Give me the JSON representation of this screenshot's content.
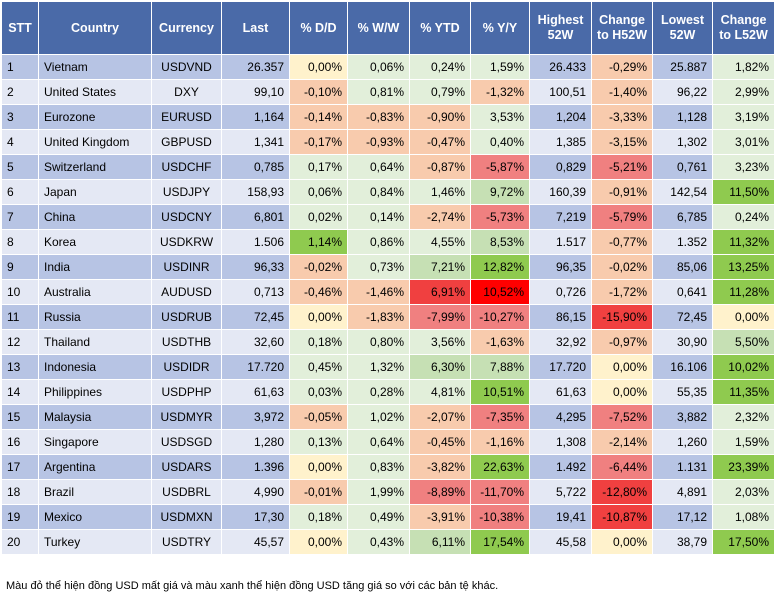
{
  "table": {
    "headers": [
      "STT",
      "Country",
      "Currency",
      "Last",
      "% D/D",
      "% W/W",
      "% YTD",
      "% Y/Y",
      "Highest 52W",
      "Change to H52W",
      "Lowest 52W",
      "Change to L52W"
    ],
    "rows": [
      [
        "1",
        "Vietnam",
        "USDVND",
        "26.357",
        "0,00%",
        "0,06%",
        "0,24%",
        "1,59%",
        "26.433",
        "-0,29%",
        "25.887",
        "1,82%"
      ],
      [
        "2",
        "United States",
        "DXY",
        "99,10",
        "-0,10%",
        "0,81%",
        "0,79%",
        "-1,32%",
        "100,51",
        "-1,40%",
        "96,22",
        "2,99%"
      ],
      [
        "3",
        "Eurozone",
        "EURUSD",
        "1,164",
        "-0,14%",
        "-0,83%",
        "-0,90%",
        "3,53%",
        "1,204",
        "-3,33%",
        "1,128",
        "3,19%"
      ],
      [
        "4",
        "United Kingdom",
        "GBPUSD",
        "1,341",
        "-0,17%",
        "-0,93%",
        "-0,47%",
        "0,40%",
        "1,385",
        "-3,15%",
        "1,302",
        "3,01%"
      ],
      [
        "5",
        "Switzerland",
        "USDCHF",
        "0,785",
        "0,17%",
        "0,64%",
        "-0,87%",
        "-5,87%",
        "0,829",
        "-5,21%",
        "0,761",
        "3,23%"
      ],
      [
        "6",
        "Japan",
        "USDJPY",
        "158,93",
        "0,06%",
        "0,84%",
        "1,46%",
        "9,72%",
        "160,39",
        "-0,91%",
        "142,54",
        "11,50%"
      ],
      [
        "7",
        "China",
        "USDCNY",
        "6,801",
        "0,02%",
        "0,14%",
        "-2,74%",
        "-5,73%",
        "7,219",
        "-5,79%",
        "6,785",
        "0,24%"
      ],
      [
        "8",
        "Korea",
        "USDKRW",
        "1.506",
        "1,14%",
        "0,86%",
        "4,55%",
        "8,53%",
        "1.517",
        "-0,77%",
        "1.352",
        "11,32%"
      ],
      [
        "9",
        "India",
        "USDINR",
        "96,33",
        "-0,02%",
        "0,73%",
        "7,21%",
        "12,82%",
        "96,35",
        "-0,02%",
        "85,06",
        "13,25%"
      ],
      [
        "10",
        "Australia",
        "AUDUSD",
        "0,713",
        "-0,46%",
        "-1,46%",
        "6,91%",
        "10,52%",
        "0,726",
        "-1,72%",
        "0,641",
        "11,28%"
      ],
      [
        "11",
        "Russia",
        "USDRUB",
        "72,45",
        "0,00%",
        "-1,83%",
        "-7,99%",
        "-10,27%",
        "86,15",
        "-15,90%",
        "72,45",
        "0,00%"
      ],
      [
        "12",
        "Thailand",
        "USDTHB",
        "32,60",
        "0,18%",
        "0,80%",
        "3,56%",
        "-1,63%",
        "32,92",
        "-0,97%",
        "30,90",
        "5,50%"
      ],
      [
        "13",
        "Indonesia",
        "USDIDR",
        "17.720",
        "0,45%",
        "1,32%",
        "6,30%",
        "7,88%",
        "17.720",
        "0,00%",
        "16.106",
        "10,02%"
      ],
      [
        "14",
        "Philippines",
        "USDPHP",
        "61,63",
        "0,03%",
        "0,28%",
        "4,81%",
        "10,51%",
        "61,63",
        "0,00%",
        "55,35",
        "11,35%"
      ],
      [
        "15",
        "Malaysia",
        "USDMYR",
        "3,972",
        "-0,05%",
        "1,02%",
        "-2,07%",
        "-7,35%",
        "4,295",
        "-7,52%",
        "3,882",
        "2,32%"
      ],
      [
        "16",
        "Singapore",
        "USDSGD",
        "1,280",
        "0,13%",
        "0,64%",
        "-0,45%",
        "-1,16%",
        "1,308",
        "-2,14%",
        "1,260",
        "1,59%"
      ],
      [
        "17",
        "Argentina",
        "USDARS",
        "1.396",
        "0,00%",
        "0,83%",
        "-3,82%",
        "22,63%",
        "1.492",
        "-6,44%",
        "1.131",
        "23,39%"
      ],
      [
        "18",
        "Brazil",
        "USDBRL",
        "4,990",
        "-0,01%",
        "1,99%",
        "-8,89%",
        "-11,70%",
        "5,722",
        "-12,80%",
        "4,891",
        "2,03%"
      ],
      [
        "19",
        "Mexico",
        "USDMXN",
        "17,30",
        "0,18%",
        "0,49%",
        "-3,91%",
        "-10,38%",
        "19,41",
        "-10,87%",
        "17,12",
        "1,08%"
      ],
      [
        "20",
        "Turkey",
        "USDTRY",
        "45,57",
        "0,00%",
        "0,43%",
        "6,11%",
        "17,54%",
        "45,58",
        "0,00%",
        "38,79",
        "17,50%"
      ]
    ],
    "cell_colors": [
      [
        "",
        "",
        "",
        "",
        "#fff2cc",
        "#e2efda",
        "#e2efda",
        "#e2efda",
        "",
        "#f8cbad",
        "",
        "#e2efda"
      ],
      [
        "",
        "",
        "",
        "",
        "#f8cbad",
        "#e2efda",
        "#e2efda",
        "#f8cbad",
        "",
        "#f8cbad",
        "",
        "#e2efda"
      ],
      [
        "",
        "",
        "",
        "",
        "#f8cbad",
        "#f8cbad",
        "#f8cbad",
        "#e2efda",
        "",
        "#f8cbad",
        "",
        "#e2efda"
      ],
      [
        "",
        "",
        "",
        "",
        "#f8cbad",
        "#f8cbad",
        "#f8cbad",
        "#e2efda",
        "",
        "#f8cbad",
        "",
        "#e2efda"
      ],
      [
        "",
        "",
        "",
        "",
        "#e2efda",
        "#e2efda",
        "#f8cbad",
        "#f08080",
        "",
        "#f08080",
        "",
        "#e2efda"
      ],
      [
        "",
        "",
        "",
        "",
        "#e2efda",
        "#e2efda",
        "#e2efda",
        "#c6e0b4",
        "",
        "#f8cbad",
        "",
        "#8fca4f"
      ],
      [
        "",
        "",
        "",
        "",
        "#e2efda",
        "#e2efda",
        "#f8cbad",
        "#f08080",
        "",
        "#f08080",
        "",
        "#e2efda"
      ],
      [
        "",
        "",
        "",
        "",
        "#8fca4f",
        "#e2efda",
        "#e2efda",
        "#c6e0b4",
        "",
        "#f8cbad",
        "",
        "#8fca4f"
      ],
      [
        "",
        "",
        "",
        "",
        "#f8cbad",
        "#e2efda",
        "#c6e0b4",
        "#8fca4f",
        "",
        "#f8cbad",
        "",
        "#8fca4f"
      ],
      [
        "",
        "",
        "",
        "",
        "#f8cbad",
        "#f8cbad",
        "#f04040",
        "#ff0000",
        "",
        "#f8cbad",
        "",
        "#8fca4f"
      ],
      [
        "",
        "",
        "",
        "",
        "#fff2cc",
        "#f8cbad",
        "#f08080",
        "#f08080",
        "",
        "#f04040",
        "",
        "#fff2cc"
      ],
      [
        "",
        "",
        "",
        "",
        "#e2efda",
        "#e2efda",
        "#e2efda",
        "#f8cbad",
        "",
        "#f8cbad",
        "",
        "#c6e0b4"
      ],
      [
        "",
        "",
        "",
        "",
        "#e2efda",
        "#e2efda",
        "#c6e0b4",
        "#c6e0b4",
        "",
        "#fff2cc",
        "",
        "#8fca4f"
      ],
      [
        "",
        "",
        "",
        "",
        "#e2efda",
        "#e2efda",
        "#e2efda",
        "#8fca4f",
        "",
        "#fff2cc",
        "",
        "#8fca4f"
      ],
      [
        "",
        "",
        "",
        "",
        "#f8cbad",
        "#e2efda",
        "#f8cbad",
        "#f08080",
        "",
        "#f08080",
        "",
        "#e2efda"
      ],
      [
        "",
        "",
        "",
        "",
        "#e2efda",
        "#e2efda",
        "#f8cbad",
        "#f8cbad",
        "",
        "#f8cbad",
        "",
        "#e2efda"
      ],
      [
        "",
        "",
        "",
        "",
        "#fff2cc",
        "#e2efda",
        "#f8cbad",
        "#8fca4f",
        "",
        "#f08080",
        "",
        "#8fca4f"
      ],
      [
        "",
        "",
        "",
        "",
        "#f8cbad",
        "#e2efda",
        "#f08080",
        "#f08080",
        "",
        "#f04040",
        "",
        "#e2efda"
      ],
      [
        "",
        "",
        "",
        "",
        "#e2efda",
        "#e2efda",
        "#f8cbad",
        "#f08080",
        "",
        "#f04040",
        "",
        "#e2efda"
      ],
      [
        "",
        "",
        "",
        "",
        "#fff2cc",
        "#e2efda",
        "#c6e0b4",
        "#8fca4f",
        "",
        "#fff2cc",
        "",
        "#8fca4f"
      ]
    ]
  },
  "footnote": "Màu đỏ thể hiện đồng USD mất giá và màu xanh thể hiện đồng USD tăng giá so với các bản tệ khác."
}
